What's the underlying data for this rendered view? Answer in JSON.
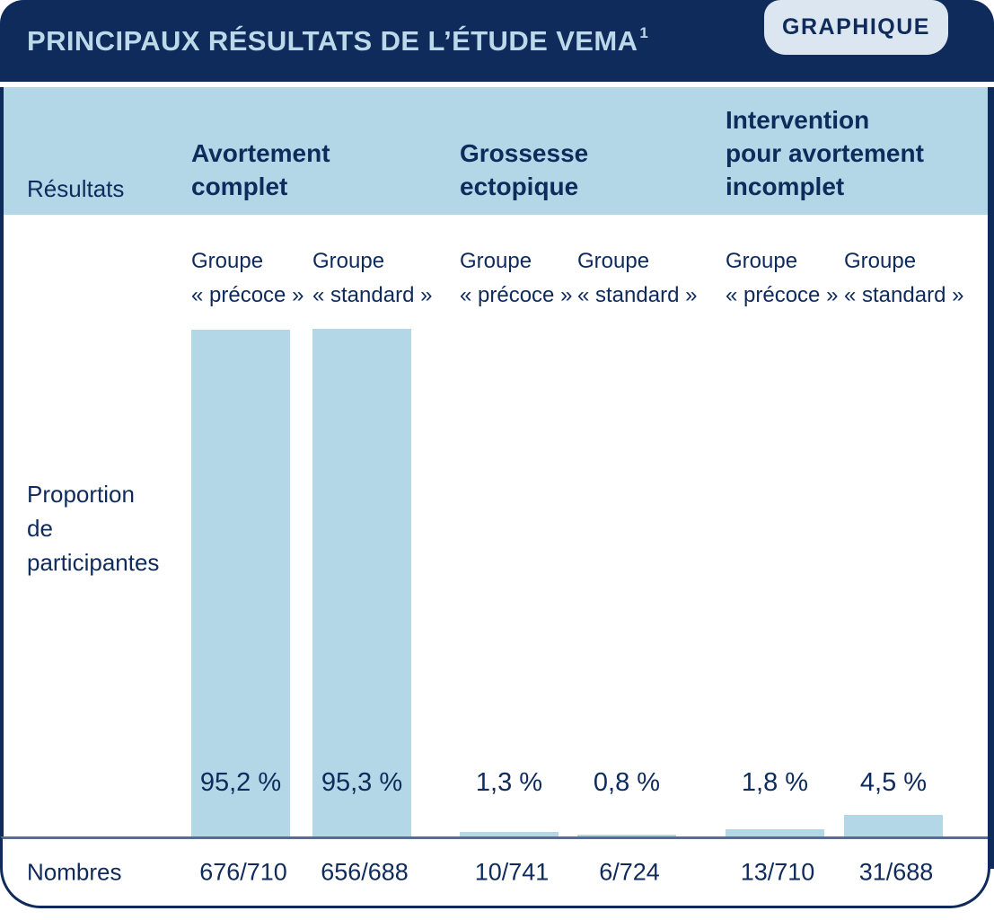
{
  "colors": {
    "navy": "#0e2b5c",
    "light_blue": "#b4d7e8",
    "badge_bg": "#dbe6f0",
    "header_text": "#bcd9ea",
    "baseline": "#5a6b9b"
  },
  "header": {
    "title": "PRINCIPAUX RÉSULTATS DE L’ÉTUDE VEMA",
    "title_superscript": "1",
    "badge_label": "GRAPHIQUE"
  },
  "labels": {
    "results_row": "Résultats",
    "proportion_lines": [
      "Proportion",
      "de",
      "participantes"
    ],
    "numbers_row": "Nombres"
  },
  "chart_data": {
    "type": "bar",
    "title": "Principaux résultats de l’étude VEMA",
    "ylabel": "Proportion de participantes",
    "xlabel": "",
    "ylim": [
      0,
      100
    ],
    "grid": false,
    "legend_position": "none",
    "groups": [
      {
        "outcome": "Avortement complet",
        "outcome_lines": [
          "Avortement",
          "complet"
        ],
        "bars": [
          {
            "arm": "Groupe « précoce »",
            "arm_lines": [
              "Groupe",
              "« précoce »"
            ],
            "value": 95.2,
            "percent_label": "95,2 %",
            "count": "676/710"
          },
          {
            "arm": "Groupe « standard »",
            "arm_lines": [
              "Groupe",
              "« standard »"
            ],
            "value": 95.3,
            "percent_label": "95,3 %",
            "count": "656/688"
          }
        ]
      },
      {
        "outcome": "Grossesse ectopique",
        "outcome_lines": [
          "Grossesse",
          "ectopique"
        ],
        "bars": [
          {
            "arm": "Groupe « précoce »",
            "arm_lines": [
              "Groupe",
              "« précoce »"
            ],
            "value": 1.3,
            "percent_label": "1,3 %",
            "count": "10/741"
          },
          {
            "arm": "Groupe « standard »",
            "arm_lines": [
              "Groupe",
              "« standard »"
            ],
            "value": 0.8,
            "percent_label": "0,8 %",
            "count": "6/724"
          }
        ]
      },
      {
        "outcome": "Intervention pour avortement incomplet",
        "outcome_lines": [
          "Intervention",
          "pour avortement",
          "incomplet"
        ],
        "bars": [
          {
            "arm": "Groupe « précoce »",
            "arm_lines": [
              "Groupe",
              "« précoce »"
            ],
            "value": 1.8,
            "percent_label": "1,8 %",
            "count": "13/710"
          },
          {
            "arm": "Groupe « standard »",
            "arm_lines": [
              "Groupe",
              "« standard »"
            ],
            "value": 4.5,
            "percent_label": "4,5 %",
            "count": "31/688"
          }
        ]
      }
    ]
  }
}
